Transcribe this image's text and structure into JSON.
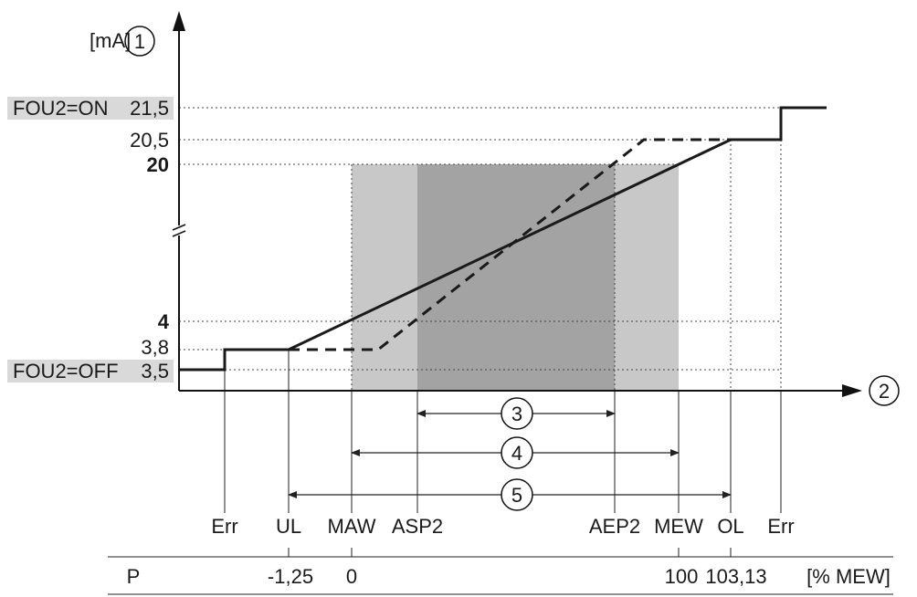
{
  "y_axis": {
    "unit": "[mA]",
    "marker": "1"
  },
  "x_axis": {
    "marker": "2"
  },
  "y_ticks": [
    {
      "id": "fou2-on",
      "prefix": "FOU2=ON",
      "value": "21,5",
      "bold": false
    },
    {
      "id": "20-5",
      "prefix": "",
      "value": "20,5",
      "bold": false
    },
    {
      "id": "20",
      "prefix": "",
      "value": "20",
      "bold": true
    },
    {
      "id": "4",
      "prefix": "",
      "value": "4",
      "bold": true
    },
    {
      "id": "3-8",
      "prefix": "",
      "value": "3,8",
      "bold": false
    },
    {
      "id": "fou2-off",
      "prefix": "FOU2=OFF",
      "value": "3,5",
      "bold": false
    }
  ],
  "x_labels": [
    "Err",
    "UL",
    "MAW",
    "ASP2",
    "AEP2",
    "MEW",
    "OL",
    "Err"
  ],
  "ranges": [
    {
      "marker": "3"
    },
    {
      "marker": "4"
    },
    {
      "marker": "5"
    }
  ],
  "table": {
    "row_label": "P",
    "values": [
      "-1,25",
      "0",
      "100",
      "103,13"
    ],
    "unit": "[% MEW]"
  },
  "colors": {
    "outer_band": "#c8c8c8",
    "inner_band": "#a3a3a3",
    "label_bg": "#d9d9d9",
    "line": "#1a1a1a"
  }
}
